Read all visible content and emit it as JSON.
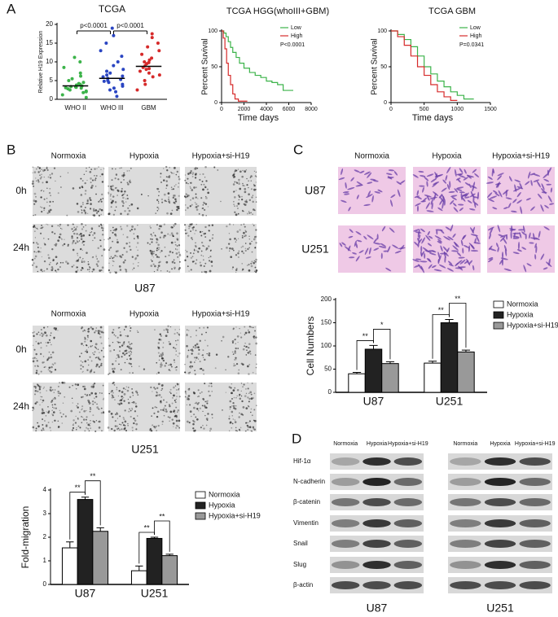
{
  "panel_labels": [
    "A",
    "B",
    "C",
    "D"
  ],
  "chart_data": [
    {
      "type": "dot_plot",
      "title": "TCGA",
      "y_label": "Relative H19 Expression",
      "categories": [
        "WHO II",
        "WHO III",
        "GBM"
      ],
      "colors": [
        "#3cb34a",
        "#2a45c2",
        "#d62a2a"
      ],
      "values": [
        [
          1.2,
          2.0,
          2.5,
          2.8,
          3.0,
          3.2,
          3.4,
          3.5,
          3.6,
          3.8,
          4.0,
          4.2,
          4.5,
          5.0,
          5.5,
          6.2,
          7.0,
          8.5,
          10.0,
          11.2,
          0.5,
          1.8,
          3.1,
          3.3,
          2.2
        ],
        [
          0.8,
          2.0,
          3.0,
          3.5,
          4.0,
          4.5,
          5.0,
          5.3,
          5.6,
          6.0,
          6.5,
          7.0,
          7.5,
          8.0,
          9.0,
          10.0,
          11.5,
          13.0,
          15.0,
          17.0,
          19.0,
          2.5,
          4.8,
          6.2
        ],
        [
          2.5,
          4.0,
          5.0,
          6.0,
          6.5,
          7.0,
          7.5,
          8.0,
          8.5,
          9.0,
          9.5,
          10.0,
          10.5,
          11.0,
          12.0,
          13.0,
          14.0,
          15.0,
          16.5,
          17.5,
          8.2,
          9.8
        ]
      ],
      "means": [
        3.6,
        5.6,
        8.8
      ],
      "annotations": [
        "p<0.0001",
        "p<0.0001"
      ],
      "ylim": [
        0,
        20
      ],
      "yticks": [
        0,
        5,
        10,
        15,
        20
      ]
    },
    {
      "type": "survival",
      "title": "TCGA HGG(whoIII+GBM)",
      "x_label": "Time days",
      "y_label": "Percent Suvival",
      "series": [
        {
          "name": "Low",
          "color": "#3cb34a",
          "x": [
            0,
            200,
            400,
            600,
            800,
            1000,
            1300,
            1600,
            2000,
            2500,
            3000,
            3500,
            4000,
            4500,
            5000,
            5500,
            6400
          ],
          "values": [
            100,
            97,
            92,
            85,
            77,
            70,
            63,
            55,
            48,
            42,
            38,
            35,
            30,
            28,
            25,
            17,
            17
          ]
        },
        {
          "name": "High",
          "color": "#d62a2a",
          "x": [
            0,
            150,
            300,
            450,
            600,
            800,
            1000,
            1200,
            1500,
            2300
          ],
          "values": [
            100,
            90,
            75,
            55,
            38,
            25,
            12,
            5,
            2,
            2
          ]
        }
      ],
      "annotation": "P<0.0001",
      "legend": "top-right",
      "xlim": [
        0,
        8000
      ],
      "xticks": [
        0,
        2000,
        4000,
        6000,
        8000
      ],
      "ylim": [
        0,
        100
      ],
      "yticks": [
        0,
        50,
        100
      ]
    },
    {
      "type": "survival",
      "title": "TCGA GBM",
      "x_label": "Time days",
      "y_label": "Percent Suvival",
      "series": [
        {
          "name": "Low",
          "color": "#3cb34a",
          "x": [
            0,
            100,
            200,
            300,
            400,
            500,
            600,
            700,
            800,
            900,
            1000,
            1100,
            1250
          ],
          "values": [
            100,
            95,
            88,
            78,
            65,
            50,
            40,
            30,
            22,
            15,
            10,
            5,
            5
          ]
        },
        {
          "name": "High",
          "color": "#d62a2a",
          "x": [
            0,
            100,
            200,
            300,
            400,
            500,
            600,
            700,
            800,
            900,
            1000
          ],
          "values": [
            100,
            92,
            80,
            65,
            50,
            38,
            25,
            15,
            8,
            3,
            3
          ]
        }
      ],
      "annotation": "P=0.0341",
      "legend": "top-right",
      "xlim": [
        0,
        1500
      ],
      "xticks": [
        0,
        500,
        1000,
        1500
      ],
      "ylim": [
        0,
        100
      ],
      "yticks": [
        0,
        50,
        100
      ]
    },
    {
      "type": "bar",
      "y_label": "Fold-migration",
      "categories": [
        "U87",
        "U251"
      ],
      "series": [
        {
          "name": "Normoxia",
          "color": "#ffffff",
          "values": [
            1.55,
            0.58
          ],
          "errors": [
            0.25,
            0.2
          ]
        },
        {
          "name": "Hypoxia",
          "color": "#222222",
          "values": [
            3.6,
            1.95
          ],
          "errors": [
            0.1,
            0.05
          ]
        },
        {
          "name": "Hypoxia+si-H19",
          "color": "#999999",
          "values": [
            2.25,
            1.22
          ],
          "errors": [
            0.15,
            0.06
          ]
        }
      ],
      "annotations": [
        "**",
        "**",
        "**",
        "**"
      ],
      "legend": "outside-right",
      "ylim": [
        0,
        4
      ],
      "yticks": [
        0,
        1,
        2,
        3,
        4
      ]
    },
    {
      "type": "bar",
      "y_label": "Cell Numbers",
      "categories": [
        "U87",
        "U251"
      ],
      "series": [
        {
          "name": "Normoxia",
          "color": "#ffffff",
          "values": [
            40,
            63
          ],
          "errors": [
            3,
            4
          ]
        },
        {
          "name": "Hypoxia",
          "color": "#222222",
          "values": [
            93,
            150
          ],
          "errors": [
            8,
            7
          ]
        },
        {
          "name": "Hypoxia+si-H19",
          "color": "#999999",
          "values": [
            62,
            87
          ],
          "errors": [
            4,
            4
          ]
        }
      ],
      "annotations": [
        "**",
        "*",
        "**",
        "**"
      ],
      "legend": "outside-right",
      "ylim": [
        0,
        200
      ],
      "yticks": [
        0,
        50,
        100,
        150,
        200
      ]
    }
  ],
  "migration": {
    "blocks": [
      {
        "conditions": [
          "Normoxia",
          "Hypoxia",
          "Hypoxia+si-H19"
        ],
        "times": [
          "0h",
          "24h"
        ],
        "cell_line": "U87"
      },
      {
        "conditions": [
          "Normoxia",
          "Hypoxia",
          "Hypoxia+si-H19"
        ],
        "times": [
          "0h",
          "24h"
        ],
        "cell_line": "U251"
      }
    ]
  },
  "invasion": {
    "conditions": [
      "Normoxia",
      "Hypoxia",
      "Hypoxia+si-H19"
    ],
    "cell_lines": [
      "U87",
      "U251"
    ]
  },
  "western": {
    "proteins": [
      "Hif-1α",
      "N-cadherin",
      "β-catenin",
      "Vimentin",
      "Snail",
      "Slug",
      "β-actin"
    ],
    "blots": [
      {
        "conditions": [
          "Normoxia",
          "Hypoxia",
          "Hypoxia+si-H19"
        ],
        "cell_line": "U87"
      },
      {
        "conditions": [
          "Normoxia",
          "Hypoxia",
          "Hypoxia+si-H19"
        ],
        "cell_line": "U251"
      }
    ]
  }
}
